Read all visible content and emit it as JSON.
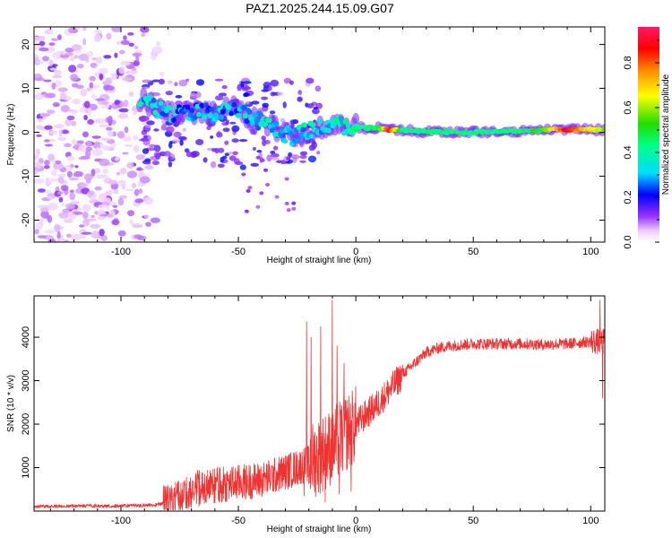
{
  "title": "PAZ1.2025.244.15.09.G07",
  "chart_data": [
    {
      "type": "heatmap",
      "name": "spectrogram",
      "xlabel": "Height of straight line (km)",
      "ylabel": "Frequency (Hz)",
      "xlim": [
        -137,
        106
      ],
      "ylim": [
        -25,
        24
      ],
      "xticks": [
        -100,
        -50,
        0,
        50,
        100
      ],
      "yticks": [
        -20,
        -10,
        0,
        10,
        20
      ],
      "ridge": [
        {
          "x": -92,
          "y": 7.5,
          "a": 0.35
        },
        {
          "x": -85,
          "y": 5.5,
          "a": 0.35
        },
        {
          "x": -78,
          "y": 4.0,
          "a": 0.3
        },
        {
          "x": -72,
          "y": 4.5,
          "a": 0.3
        },
        {
          "x": -66,
          "y": 5.0,
          "a": 0.3
        },
        {
          "x": -60,
          "y": 4.0,
          "a": 0.3
        },
        {
          "x": -55,
          "y": 6.0,
          "a": 0.3
        },
        {
          "x": -50,
          "y": 5.0,
          "a": 0.3
        },
        {
          "x": -44,
          "y": 3.0,
          "a": 0.35
        },
        {
          "x": -38,
          "y": 2.0,
          "a": 0.35
        },
        {
          "x": -32,
          "y": 0.0,
          "a": 0.35
        },
        {
          "x": -26,
          "y": -1.0,
          "a": 0.35
        },
        {
          "x": -20,
          "y": 0.5,
          "a": 0.35
        },
        {
          "x": -14,
          "y": 1.0,
          "a": 0.35
        },
        {
          "x": -8,
          "y": 1.5,
          "a": 0.38
        },
        {
          "x": -2,
          "y": 1.5,
          "a": 0.4
        },
        {
          "x": 4,
          "y": 1.0,
          "a": 0.45
        },
        {
          "x": 10,
          "y": 1.0,
          "a": 0.5
        },
        {
          "x": 14,
          "y": 0.5,
          "a": 0.9
        },
        {
          "x": 20,
          "y": 0.5,
          "a": 0.45
        },
        {
          "x": 30,
          "y": 0.2,
          "a": 0.45
        },
        {
          "x": 40,
          "y": 0.0,
          "a": 0.45
        },
        {
          "x": 50,
          "y": 0.0,
          "a": 0.45
        },
        {
          "x": 60,
          "y": 0.2,
          "a": 0.45
        },
        {
          "x": 70,
          "y": 0.3,
          "a": 0.45
        },
        {
          "x": 80,
          "y": 0.5,
          "a": 0.55
        },
        {
          "x": 90,
          "y": 0.6,
          "a": 0.9
        },
        {
          "x": 100,
          "y": 0.6,
          "a": 0.7
        },
        {
          "x": 106,
          "y": 0.6,
          "a": 0.6
        }
      ]
    },
    {
      "type": "line",
      "name": "snr",
      "xlabel": "Height of straight line (km)",
      "ylabel": "SNR (10 * v/v)",
      "xlim": [
        -137,
        106
      ],
      "ylim": [
        0,
        4950
      ],
      "xticks": [
        -100,
        -50,
        0,
        50,
        100
      ],
      "yticks": [
        1000,
        2000,
        3000,
        4000
      ],
      "color": "#ee3333",
      "trend": {
        "x": [
          -137,
          -100,
          -85,
          -80,
          -75,
          -70,
          -60,
          -50,
          -40,
          -30,
          -20,
          -15,
          -10,
          -5,
          0,
          10,
          20,
          25,
          30,
          35,
          40,
          50,
          60,
          70,
          80,
          90,
          100,
          106
        ],
        "y": [
          110,
          120,
          140,
          200,
          350,
          500,
          580,
          650,
          720,
          900,
          1100,
          1300,
          1500,
          1750,
          2000,
          2500,
          3150,
          3400,
          3650,
          3750,
          3800,
          3850,
          3850,
          3850,
          3830,
          3850,
          3900,
          3900
        ]
      },
      "spikes": [
        {
          "x": -21,
          "y": 4350
        },
        {
          "x": -19,
          "y": 4000
        },
        {
          "x": -15,
          "y": 4250
        },
        {
          "x": -10,
          "y": 4850
        },
        {
          "x": -8,
          "y": 3800
        },
        {
          "x": -5,
          "y": 3400
        },
        {
          "x": 104,
          "y": 4850
        }
      ],
      "dips": [
        {
          "x": -22,
          "y": 350
        },
        {
          "x": -13,
          "y": 200
        },
        {
          "x": -7,
          "y": 400
        },
        {
          "x": -2,
          "y": 450
        },
        {
          "x": 105,
          "y": 2600
        }
      ]
    }
  ],
  "colorbar": {
    "label": "Normalized spectral amplitude",
    "ticks": [
      "0.0",
      "0.2",
      "0.4",
      "0.6",
      "0.8"
    ],
    "tick_values": [
      0.0,
      0.2,
      0.4,
      0.6,
      0.8
    ],
    "range": [
      0.0,
      0.96
    ]
  }
}
